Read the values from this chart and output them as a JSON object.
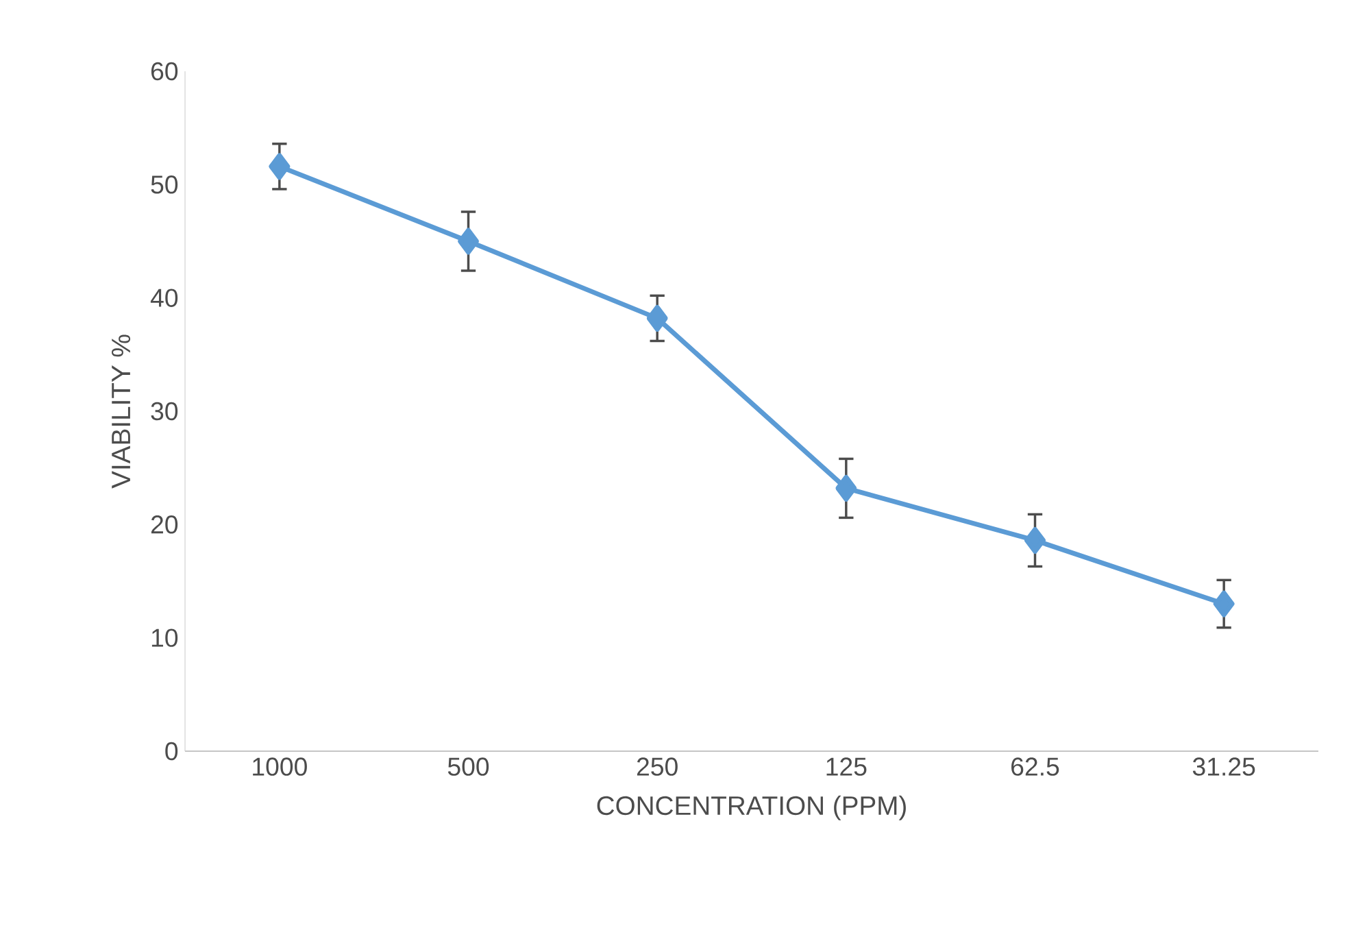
{
  "chart_data": {
    "type": "line",
    "xlabel": "CONCENTRATION (PPM)",
    "ylabel": "VIABILITY %",
    "categories": [
      "1000",
      "500",
      "250",
      "125",
      "62.5",
      "31.25"
    ],
    "series": [
      {
        "color": "#5b9bd5",
        "values": [
          51.6,
          45.0,
          38.2,
          23.2,
          18.6,
          13.0
        ],
        "errors": [
          2.0,
          2.6,
          2.0,
          2.6,
          2.3,
          2.1
        ]
      }
    ],
    "ylim": [
      0,
      60
    ],
    "yticks": [
      0,
      10,
      20,
      30,
      40,
      50,
      60
    ],
    "grid": false,
    "marker": "diamond",
    "line_style": "solid"
  }
}
